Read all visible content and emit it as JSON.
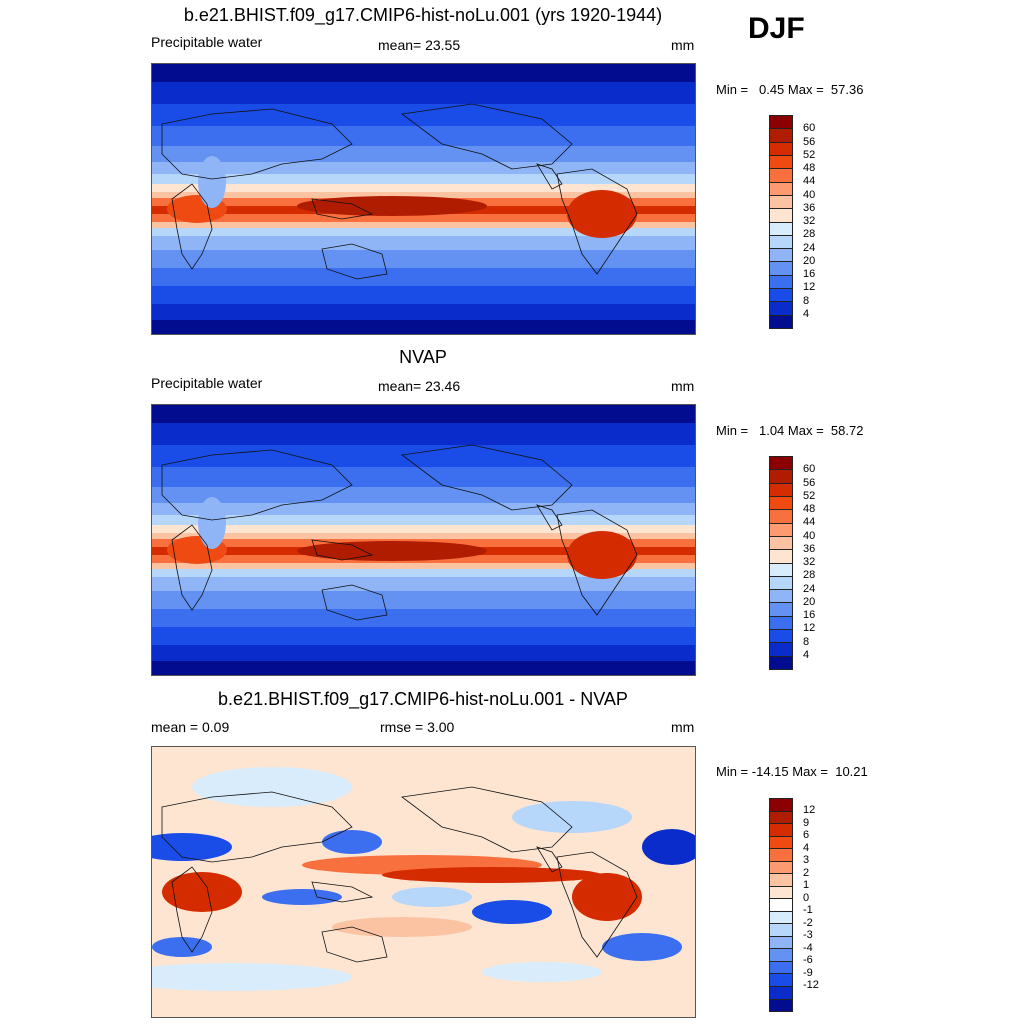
{
  "season": "DJF",
  "panels": [
    {
      "title": "b.e21.BHIST.f09_g17.CMIP6-hist-noLu.001 (yrs 1920-1944)",
      "left_label": "Precipitable water",
      "center_label": "mean=  23.55",
      "units": "mm",
      "minmax": "Min =   0.45 Max =  57.36",
      "colorbar": {
        "colors": [
          "#8b0000",
          "#b01c00",
          "#d42c00",
          "#ee4a12",
          "#f8703e",
          "#fc9a72",
          "#fcc3a3",
          "#fde5d2",
          "#d8ecfb",
          "#b6d6fa",
          "#8fb5f6",
          "#6392f2",
          "#3b6ff0",
          "#1a4de8",
          "#0a2ccb",
          "#020c8f"
        ],
        "ticks": [
          "60",
          "56",
          "52",
          "48",
          "44",
          "40",
          "36",
          "32",
          "28",
          "24",
          "20",
          "16",
          "12",
          "8",
          "4"
        ]
      },
      "map_type": "precipitable-water"
    },
    {
      "title": "NVAP",
      "left_label": "Precipitable water",
      "center_label": "mean=  23.46",
      "units": "mm",
      "minmax": "Min =   1.04 Max =  58.72",
      "colorbar": {
        "colors": [
          "#8b0000",
          "#b01c00",
          "#d42c00",
          "#ee4a12",
          "#f8703e",
          "#fc9a72",
          "#fcc3a3",
          "#fde5d2",
          "#d8ecfb",
          "#b6d6fa",
          "#8fb5f6",
          "#6392f2",
          "#3b6ff0",
          "#1a4de8",
          "#0a2ccb",
          "#020c8f"
        ],
        "ticks": [
          "60",
          "56",
          "52",
          "48",
          "44",
          "40",
          "36",
          "32",
          "28",
          "24",
          "20",
          "16",
          "12",
          "8",
          "4"
        ]
      },
      "map_type": "precipitable-water"
    },
    {
      "title": "b.e21.BHIST.f09_g17.CMIP6-hist-noLu.001 - NVAP",
      "left_label": "mean =   0.09",
      "center_label": "rmse =   3.00",
      "units": "mm",
      "minmax": "Min = -14.15 Max =  10.21",
      "colorbar": {
        "colors": [
          "#8b0000",
          "#b01c00",
          "#d42c00",
          "#ee4a12",
          "#f8703e",
          "#fc9a72",
          "#fcc3a3",
          "#fde5d2",
          "#ffffff",
          "#d8ecfb",
          "#b6d6fa",
          "#8fb5f6",
          "#6392f2",
          "#3b6ff0",
          "#1a4de8",
          "#0a2ccb",
          "#020c8f"
        ],
        "ticks": [
          "12",
          "9",
          "6",
          "4",
          "3",
          "2",
          "1",
          "0",
          "-1",
          "-2",
          "-3",
          "-4",
          "-6",
          "-9",
          "-12"
        ]
      },
      "map_type": "difference"
    }
  ]
}
